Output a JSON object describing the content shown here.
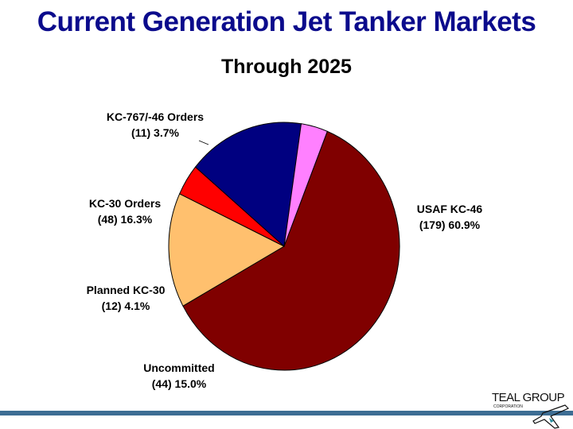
{
  "header": {
    "title": "Current Generation Jet Tanker Markets",
    "subtitle": "Through 2025"
  },
  "chart_data": {
    "type": "pie",
    "title": "Through 2025",
    "start_angle_deg": -68,
    "slices": [
      {
        "name": "USAF KC-46",
        "count_label": "(179)",
        "percent_label": "60.9%",
        "count": 179,
        "percent": 60.9,
        "color": "#800000"
      },
      {
        "name": "Uncommitted",
        "count_label": "(44)",
        "percent_label": "15.0%",
        "count": 44,
        "percent": 15.0,
        "color": "#ffc06e"
      },
      {
        "name": "Planned KC-30",
        "count_label": "(12)",
        "percent_label": "4.1%",
        "count": 12,
        "percent": 4.1,
        "color": "#ff0000"
      },
      {
        "name": "KC-30 Orders",
        "count_label": "(48)",
        "percent_label": "16.3%",
        "count": 48,
        "percent": 16.3,
        "color": "#000080"
      },
      {
        "name": "KC-767/-46 Orders",
        "count_label": "(11)",
        "percent_label": "3.7%",
        "count": 11,
        "percent": 3.7,
        "color": "#ff80ff"
      }
    ]
  },
  "logo": {
    "name": "TEAL GROUP",
    "sub": "CORPORATION"
  },
  "colors": {
    "title": "#0b0b8c",
    "footer_bar": "#3d6d93"
  }
}
